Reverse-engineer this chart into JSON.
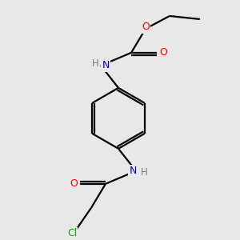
{
  "background_color": "#e8e8e8",
  "bond_color": "#000000",
  "atom_colors": {
    "N": "#0000cd",
    "O": "#ff0000",
    "Cl": "#00aa00",
    "C": "#000000",
    "H": "#708090"
  },
  "figsize": [
    3.0,
    3.0
  ],
  "dpi": 100,
  "lw": 1.6
}
